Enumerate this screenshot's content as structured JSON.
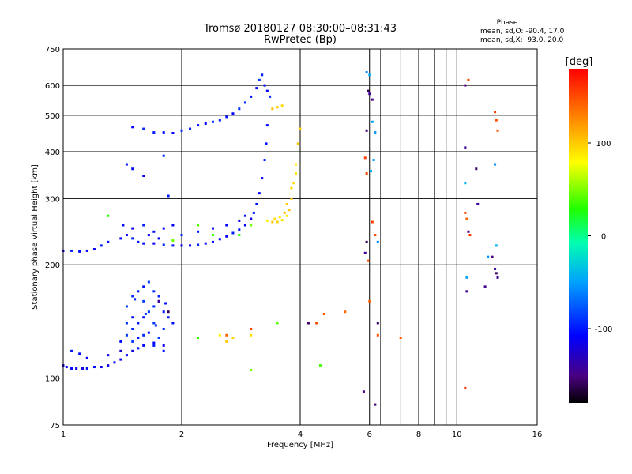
{
  "header": {
    "title": "Tromsø 20180127 08:30:00–08:31:43",
    "subtitle": "RwPretec (Bp)"
  },
  "phase_box": {
    "label": "Phase",
    "line1": "mean, sd,O: -90.4, 17.0",
    "line2": "mean, sd,X:  93.0, 20.0"
  },
  "colorbar": {
    "unit": "[deg]",
    "ticks": [
      {
        "value": 100,
        "label": "100"
      },
      {
        "value": 0,
        "label": "0"
      },
      {
        "value": -100,
        "label": "-100"
      }
    ],
    "range": [
      -180,
      180
    ]
  },
  "chart_data": {
    "type": "scatter",
    "title": "Tromsø 20180127 08:30:00–08:31:43",
    "subtitle": "RwPretec (Bp)",
    "xlabel": "Frequency [MHz]",
    "ylabel": "Stationary phase Virtual Height [km]",
    "xscale": "log",
    "yscale": "log",
    "xlim": [
      1,
      16
    ],
    "ylim": [
      75,
      750
    ],
    "grid": true,
    "x_ticks": [
      {
        "value": 1,
        "label": "1"
      },
      {
        "value": 2,
        "label": "2"
      },
      {
        "value": 4,
        "label": "4"
      },
      {
        "value": 6,
        "label": "6"
      },
      {
        "value": 8,
        "label": "8"
      },
      {
        "value": 10,
        "label": "10"
      },
      {
        "value": 16,
        "label": "16"
      }
    ],
    "x_minor": [
      6.4,
      7.2,
      8.8,
      9.4
    ],
    "y_ticks": [
      {
        "value": 75,
        "label": "75"
      },
      {
        "value": 100,
        "label": "100"
      },
      {
        "value": 200,
        "label": "200"
      },
      {
        "value": 300,
        "label": "300"
      },
      {
        "value": 400,
        "label": "400"
      },
      {
        "value": 500,
        "label": "500"
      },
      {
        "value": 600,
        "label": "600"
      },
      {
        "value": 750,
        "label": "750"
      }
    ],
    "series": [
      {
        "points": [
          [
            1.0,
            108
          ],
          [
            1.02,
            107
          ],
          [
            1.05,
            106
          ],
          [
            1.08,
            106
          ],
          [
            1.12,
            106
          ],
          [
            1.15,
            106
          ],
          [
            1.2,
            107
          ],
          [
            1.25,
            107
          ],
          [
            1.3,
            108
          ],
          [
            1.35,
            110
          ],
          [
            1.4,
            112
          ],
          [
            1.45,
            115
          ],
          [
            1.5,
            118
          ],
          [
            1.55,
            120
          ],
          [
            1.6,
            122
          ],
          [
            1.7,
            124
          ],
          [
            1.8,
            122
          ],
          [
            1.05,
            118
          ],
          [
            1.1,
            116
          ],
          [
            1.15,
            113
          ],
          [
            1.3,
            115
          ],
          [
            1.4,
            118
          ]
        ],
        "phase": -110
      },
      {
        "points": [
          [
            1.4,
            125
          ],
          [
            1.45,
            130
          ],
          [
            1.5,
            135
          ],
          [
            1.55,
            140
          ],
          [
            1.6,
            145
          ],
          [
            1.65,
            150
          ],
          [
            1.7,
            155
          ],
          [
            1.75,
            160
          ],
          [
            1.8,
            150
          ],
          [
            1.45,
            155
          ],
          [
            1.5,
            165
          ],
          [
            1.55,
            170
          ],
          [
            1.6,
            175
          ],
          [
            1.65,
            180
          ],
          [
            1.7,
            170
          ],
          [
            1.75,
            165
          ],
          [
            1.5,
            145
          ],
          [
            1.6,
            160
          ],
          [
            1.7,
            140
          ],
          [
            1.8,
            135
          ],
          [
            1.55,
            128
          ],
          [
            1.65,
            132
          ],
          [
            1.75,
            128
          ],
          [
            1.45,
            140
          ],
          [
            1.85,
            145
          ],
          [
            1.9,
            140
          ],
          [
            1.5,
            125
          ],
          [
            1.6,
            130
          ],
          [
            1.7,
            122
          ],
          [
            1.8,
            118
          ],
          [
            1.62,
            148
          ],
          [
            1.72,
            138
          ],
          [
            1.52,
            162
          ],
          [
            1.82,
            158
          ]
        ],
        "phase": -95
      },
      {
        "points": [
          [
            1.0,
            218
          ],
          [
            1.05,
            218
          ],
          [
            1.1,
            217
          ],
          [
            1.15,
            218
          ],
          [
            1.2,
            220
          ],
          [
            1.25,
            225
          ],
          [
            1.3,
            230
          ],
          [
            1.4,
            235
          ],
          [
            1.45,
            240
          ],
          [
            1.5,
            235
          ],
          [
            1.55,
            230
          ],
          [
            1.6,
            228
          ],
          [
            1.7,
            228
          ],
          [
            1.8,
            226
          ],
          [
            1.9,
            225
          ],
          [
            2.0,
            225
          ],
          [
            2.1,
            225
          ],
          [
            2.2,
            226
          ],
          [
            2.3,
            228
          ],
          [
            2.4,
            230
          ],
          [
            2.5,
            234
          ],
          [
            2.6,
            238
          ],
          [
            2.7,
            243
          ],
          [
            2.8,
            248
          ],
          [
            2.9,
            255
          ],
          [
            3.0,
            265
          ],
          [
            3.05,
            275
          ],
          [
            3.1,
            290
          ],
          [
            3.15,
            310
          ],
          [
            3.2,
            340
          ],
          [
            3.25,
            380
          ],
          [
            3.28,
            420
          ],
          [
            3.3,
            470
          ],
          [
            1.5,
            250
          ],
          [
            1.6,
            255
          ],
          [
            1.7,
            245
          ],
          [
            1.8,
            250
          ],
          [
            1.9,
            255
          ],
          [
            2.0,
            240
          ],
          [
            2.2,
            245
          ],
          [
            2.4,
            250
          ],
          [
            2.6,
            255
          ],
          [
            2.8,
            262
          ],
          [
            2.9,
            270
          ],
          [
            1.42,
            255
          ],
          [
            1.65,
            240
          ],
          [
            1.75,
            235
          ]
        ],
        "phase": -105
      },
      {
        "points": [
          [
            1.5,
            465
          ],
          [
            1.6,
            460
          ],
          [
            1.7,
            450
          ],
          [
            1.8,
            450
          ],
          [
            1.9,
            448
          ],
          [
            2.0,
            455
          ],
          [
            2.1,
            460
          ],
          [
            2.2,
            470
          ],
          [
            2.3,
            475
          ],
          [
            2.4,
            480
          ],
          [
            2.5,
            485
          ],
          [
            2.6,
            495
          ],
          [
            2.7,
            505
          ],
          [
            2.8,
            520
          ],
          [
            2.9,
            540
          ],
          [
            3.0,
            560
          ],
          [
            3.1,
            590
          ],
          [
            3.15,
            620
          ],
          [
            3.2,
            640
          ],
          [
            1.45,
            370
          ],
          [
            1.5,
            360
          ],
          [
            1.6,
            345
          ],
          [
            1.8,
            390
          ],
          [
            1.85,
            305
          ],
          [
            3.25,
            600
          ],
          [
            3.3,
            580
          ],
          [
            3.35,
            560
          ]
        ],
        "phase": -100
      },
      {
        "points": [
          [
            3.3,
            262
          ],
          [
            3.4,
            260
          ],
          [
            3.5,
            260
          ],
          [
            3.6,
            263
          ],
          [
            3.7,
            270
          ],
          [
            3.75,
            280
          ],
          [
            3.8,
            300
          ],
          [
            3.85,
            330
          ],
          [
            3.9,
            370
          ],
          [
            3.95,
            420
          ],
          [
            4.0,
            460
          ],
          [
            3.45,
            265
          ],
          [
            3.55,
            268
          ],
          [
            3.65,
            275
          ],
          [
            3.7,
            290
          ],
          [
            3.8,
            320
          ],
          [
            3.9,
            350
          ],
          [
            3.4,
            520
          ],
          [
            3.5,
            525
          ],
          [
            3.6,
            530
          ],
          [
            3.0,
            130
          ],
          [
            2.5,
            130
          ],
          [
            2.6,
            125
          ],
          [
            2.7,
            128
          ]
        ],
        "phase": 95
      },
      {
        "points": [
          [
            1.3,
            270
          ],
          [
            1.9,
            232
          ],
          [
            2.2,
            255
          ],
          [
            2.4,
            240
          ],
          [
            2.8,
            240
          ],
          [
            3.0,
            255
          ],
          [
            3.5,
            140
          ],
          [
            4.5,
            108
          ],
          [
            2.2,
            128
          ],
          [
            3.0,
            105
          ]
        ],
        "phase": 40
      },
      {
        "points": [
          [
            2.6,
            130
          ],
          [
            3.0,
            135
          ],
          [
            4.4,
            140
          ],
          [
            4.6,
            148
          ],
          [
            5.2,
            150
          ],
          [
            5.85,
            385
          ],
          [
            5.9,
            350
          ],
          [
            5.95,
            205
          ],
          [
            6.0,
            160
          ],
          [
            6.1,
            260
          ],
          [
            6.2,
            240
          ],
          [
            6.3,
            130
          ],
          [
            7.2,
            128
          ],
          [
            10.5,
            94
          ],
          [
            10.7,
            620
          ],
          [
            10.5,
            275
          ],
          [
            10.6,
            265
          ],
          [
            10.8,
            240
          ],
          [
            12.5,
            510
          ],
          [
            12.6,
            485
          ],
          [
            12.7,
            455
          ]
        ],
        "phase": 150
      },
      {
        "points": [
          [
            5.9,
            230
          ],
          [
            5.85,
            215
          ],
          [
            5.8,
            92
          ],
          [
            5.9,
            455
          ],
          [
            5.95,
            580
          ],
          [
            6.0,
            570
          ],
          [
            6.1,
            550
          ],
          [
            6.2,
            85
          ],
          [
            6.3,
            140
          ],
          [
            10.5,
            410
          ],
          [
            10.6,
            170
          ],
          [
            10.7,
            245
          ],
          [
            11.2,
            360
          ],
          [
            11.3,
            290
          ],
          [
            11.8,
            175
          ],
          [
            12.3,
            210
          ],
          [
            12.6,
            190
          ],
          [
            12.5,
            195
          ],
          [
            12.7,
            185
          ],
          [
            10.5,
            600
          ],
          [
            4.2,
            140
          ],
          [
            1.85,
            150
          ],
          [
            1.75,
            160
          ]
        ],
        "phase": -150
      },
      {
        "points": [
          [
            5.9,
            650
          ],
          [
            6.0,
            640
          ],
          [
            6.1,
            480
          ],
          [
            6.2,
            450
          ],
          [
            6.3,
            230
          ],
          [
            10.5,
            330
          ],
          [
            10.6,
            185
          ],
          [
            12.0,
            210
          ],
          [
            12.5,
            370
          ],
          [
            12.6,
            225
          ],
          [
            6.05,
            355
          ],
          [
            6.15,
            380
          ]
        ],
        "phase": -50
      }
    ]
  }
}
